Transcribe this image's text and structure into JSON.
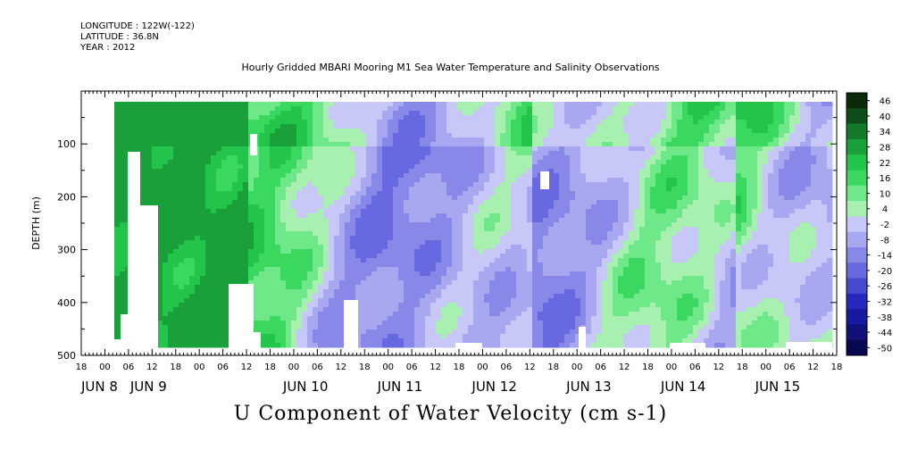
{
  "header": {
    "longitude": "LONGITUDE : 122W(-122)",
    "latitude": "LATITUDE : 36.8N",
    "year": "YEAR : 2012"
  },
  "chart_data": {
    "type": "heatmap",
    "title": "Hourly Gridded MBARI Mooring M1 Sea Water Temperature and Salinity Observations",
    "xlabel": "U Component of Water Velocity (cm s-1)",
    "ylabel": "DEPTH (m)",
    "y_axis": {
      "range": [
        0,
        500
      ],
      "inverted": true,
      "ticks": [
        100,
        200,
        300,
        400,
        500
      ]
    },
    "x_axis": {
      "start": "2012-06-07 18:00",
      "end": "2012-06-15 18:00",
      "hour_ticks": [
        "18",
        "00",
        "06",
        "12",
        "18",
        "00",
        "06",
        "12",
        "18",
        "00",
        "06",
        "12",
        "18",
        "00",
        "06",
        "12",
        "18",
        "00",
        "06",
        "12",
        "18",
        "00",
        "06",
        "12",
        "18",
        "00",
        "06",
        "12",
        "18",
        "00",
        "06",
        "12",
        "18"
      ],
      "day_labels": [
        "JUN  8",
        "JUN  9",
        "JUN 10",
        "JUN 11",
        "JUN 12",
        "JUN 13",
        "JUN 14",
        "JUN 15"
      ]
    },
    "colorbar": {
      "levels": [
        "46",
        "40",
        "34",
        "28",
        "22",
        "16",
        "10",
        "4",
        "-2",
        "-8",
        "-14",
        "-20",
        "-26",
        "-32",
        "-38",
        "-44",
        "-50"
      ],
      "range": [
        -50,
        50
      ],
      "colors": [
        "#0a2a0a",
        "#0d4d1a",
        "#137a2a",
        "#1aa03a",
        "#22c44a",
        "#3ad85e",
        "#6ee888",
        "#a8f0b0",
        "#c8c8f8",
        "#a8a8f0",
        "#8888e8",
        "#6868e0",
        "#4848d0",
        "#2828c0",
        "#1818a0",
        "#101078",
        "#080850"
      ]
    },
    "series": [
      {
        "name": "",
        "note": ""
      }
    ]
  }
}
